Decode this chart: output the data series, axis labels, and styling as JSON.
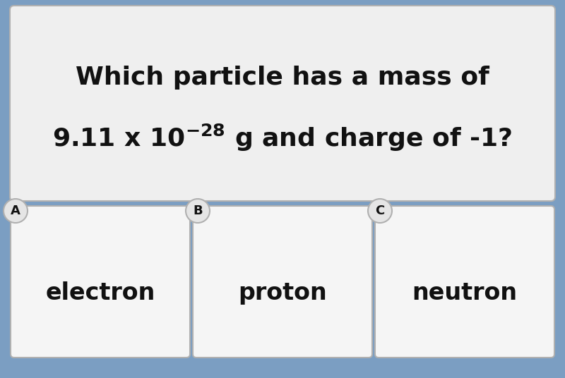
{
  "question_line1": "Which particle has a mass of",
  "question_line2_pre": "9.11 x 10",
  "superscript": "-28",
  "question_line2_post": " g and charge of -1?",
  "options": [
    "electron",
    "proton",
    "neutron"
  ],
  "option_labels": [
    "A",
    "B",
    "C"
  ],
  "background_color": "#7b9ec2",
  "question_box_color": "#efefef",
  "answer_box_color": "#f5f5f5",
  "border_color": "#b0b0b0",
  "text_color": "#111111",
  "label_circle_color": "#e5e5e5",
  "question_fontsize": 26,
  "answer_fontsize": 24,
  "label_fontsize": 13
}
